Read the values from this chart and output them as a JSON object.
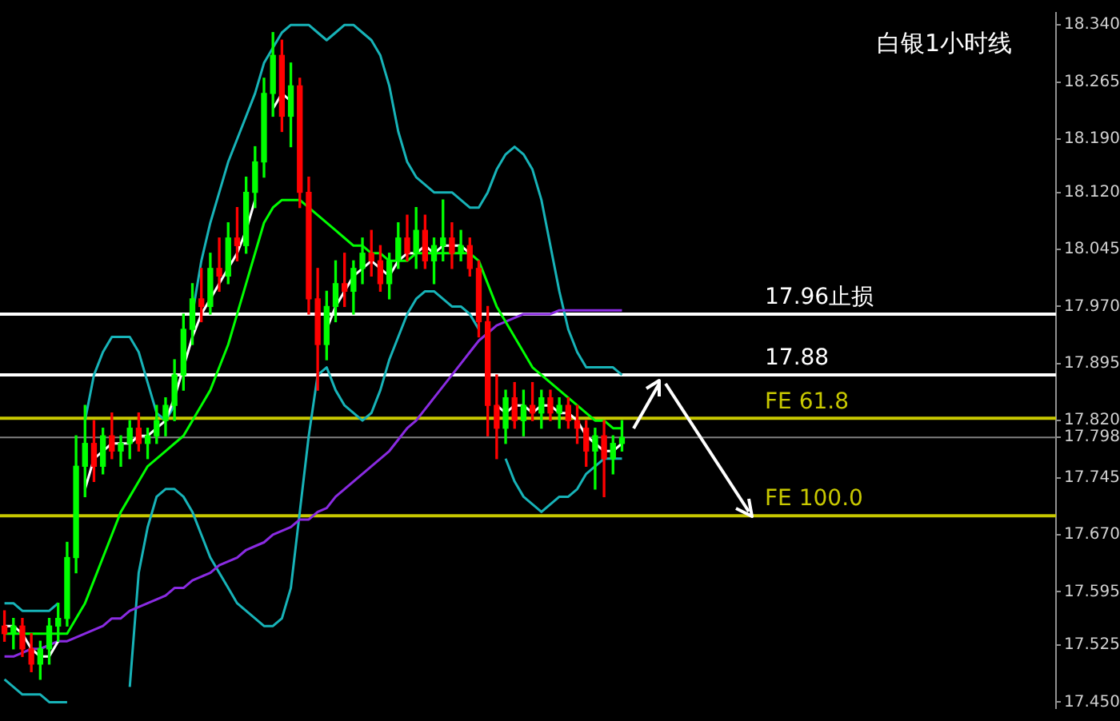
{
  "chart_data": {
    "type": "candlestick",
    "title": "白银1小时线",
    "categories": [
      null,
      null,
      null,
      null,
      null,
      null,
      null,
      null,
      null,
      null,
      null,
      null,
      null,
      null,
      null,
      null,
      null,
      null,
      null,
      null,
      null,
      null,
      null,
      null,
      null,
      null,
      null,
      null,
      null,
      null,
      null,
      null,
      null,
      null,
      null,
      null,
      null,
      null,
      null,
      null,
      null,
      null,
      null,
      null,
      null,
      null,
      null,
      null,
      null,
      null,
      null,
      null,
      null,
      null,
      null,
      null,
      null,
      null,
      null,
      null,
      null,
      null,
      null,
      null,
      null,
      null,
      null,
      null,
      null,
      null,
      null,
      null,
      null,
      null,
      null,
      null,
      null,
      null,
      null,
      null,
      null,
      null,
      null,
      null,
      null,
      null,
      null,
      null,
      null,
      null,
      null,
      null,
      null,
      null,
      null,
      null,
      null,
      null,
      null,
      null,
      null,
      null,
      null,
      null,
      null,
      null,
      null,
      null,
      null,
      null,
      null,
      null,
      null,
      null,
      null,
      null,
      null,
      null
    ],
    "ohlc": [
      [
        17.55,
        17.57,
        17.53,
        17.54
      ],
      [
        17.54,
        17.56,
        17.52,
        17.55
      ],
      [
        17.55,
        17.56,
        17.51,
        17.52
      ],
      [
        17.52,
        17.54,
        17.49,
        17.5
      ],
      [
        17.5,
        17.53,
        17.48,
        17.52
      ],
      [
        17.52,
        17.56,
        17.5,
        17.55
      ],
      [
        17.55,
        17.58,
        17.53,
        17.56
      ],
      [
        17.56,
        17.66,
        17.55,
        17.64
      ],
      [
        17.64,
        17.8,
        17.62,
        17.76
      ],
      [
        17.76,
        17.84,
        17.72,
        17.79
      ],
      [
        17.79,
        17.82,
        17.74,
        17.76
      ],
      [
        17.76,
        17.81,
        17.75,
        17.8
      ],
      [
        17.8,
        17.83,
        17.77,
        17.78
      ],
      [
        17.78,
        17.8,
        17.76,
        17.79
      ],
      [
        17.79,
        17.82,
        17.77,
        17.81
      ],
      [
        17.81,
        17.83,
        17.78,
        17.79
      ],
      [
        17.79,
        17.81,
        17.77,
        17.8
      ],
      [
        17.8,
        17.84,
        17.79,
        17.82
      ],
      [
        17.82,
        17.85,
        17.8,
        17.84
      ],
      [
        17.84,
        17.9,
        17.82,
        17.88
      ],
      [
        17.88,
        17.96,
        17.86,
        17.94
      ],
      [
        17.94,
        18.0,
        17.92,
        17.98
      ],
      [
        17.98,
        18.02,
        17.95,
        17.97
      ],
      [
        17.97,
        18.04,
        17.96,
        18.02
      ],
      [
        18.02,
        18.06,
        17.99,
        18.01
      ],
      [
        18.01,
        18.08,
        18.0,
        18.06
      ],
      [
        18.06,
        18.1,
        18.03,
        18.05
      ],
      [
        18.05,
        18.14,
        18.04,
        18.12
      ],
      [
        18.12,
        18.18,
        18.1,
        18.16
      ],
      [
        18.16,
        18.27,
        18.14,
        18.25
      ],
      [
        18.25,
        18.33,
        18.22,
        18.3
      ],
      [
        18.3,
        18.32,
        18.2,
        18.22
      ],
      [
        18.22,
        18.29,
        18.18,
        18.26
      ],
      [
        18.26,
        18.27,
        18.1,
        18.12
      ],
      [
        18.12,
        18.14,
        17.96,
        17.98
      ],
      [
        17.98,
        18.02,
        17.86,
        17.92
      ],
      [
        17.92,
        17.99,
        17.9,
        17.97
      ],
      [
        17.97,
        18.03,
        17.95,
        18.0
      ],
      [
        18.0,
        18.04,
        17.97,
        17.99
      ],
      [
        17.99,
        18.03,
        17.96,
        18.02
      ],
      [
        18.02,
        18.06,
        18.0,
        18.04
      ],
      [
        18.04,
        18.07,
        18.01,
        18.03
      ],
      [
        18.03,
        18.05,
        17.99,
        18.0
      ],
      [
        18.0,
        18.04,
        17.98,
        18.03
      ],
      [
        18.03,
        18.08,
        18.02,
        18.06
      ],
      [
        18.06,
        18.09,
        18.03,
        18.04
      ],
      [
        18.04,
        18.1,
        18.02,
        18.07
      ],
      [
        18.07,
        18.09,
        18.02,
        18.03
      ],
      [
        18.03,
        18.06,
        18.0,
        18.05
      ],
      [
        18.05,
        18.11,
        18.03,
        18.06
      ],
      [
        18.06,
        18.08,
        18.02,
        18.04
      ],
      [
        18.04,
        18.07,
        18.03,
        18.05
      ],
      [
        18.05,
        18.06,
        18.01,
        18.02
      ],
      [
        18.02,
        18.03,
        17.93,
        17.95
      ],
      [
        17.95,
        17.97,
        17.8,
        17.84
      ],
      [
        17.84,
        17.88,
        17.77,
        17.81
      ],
      [
        17.81,
        17.86,
        17.79,
        17.85
      ],
      [
        17.85,
        17.87,
        17.81,
        17.82
      ],
      [
        17.82,
        17.86,
        17.8,
        17.84
      ],
      [
        17.84,
        17.87,
        17.82,
        17.83
      ],
      [
        17.83,
        17.86,
        17.81,
        17.85
      ],
      [
        17.85,
        17.86,
        17.82,
        17.83
      ],
      [
        17.83,
        17.85,
        17.81,
        17.84
      ],
      [
        17.84,
        17.85,
        17.81,
        17.82
      ],
      [
        17.82,
        17.84,
        17.79,
        17.81
      ],
      [
        17.81,
        17.82,
        17.76,
        17.78
      ],
      [
        17.78,
        17.81,
        17.73,
        17.8
      ],
      [
        17.8,
        17.82,
        17.72,
        17.77
      ],
      [
        17.77,
        17.8,
        17.75,
        17.79
      ],
      [
        17.79,
        17.82,
        17.78,
        17.798
      ],
      null,
      null,
      null,
      null,
      null,
      null,
      null,
      null,
      null,
      null,
      null,
      null,
      null,
      null,
      null,
      null,
      null,
      null,
      null,
      null,
      null,
      null,
      null,
      null,
      null,
      null,
      null,
      null,
      null,
      null,
      null,
      null,
      null,
      null,
      null,
      null,
      null,
      null,
      null,
      null,
      null,
      null,
      null,
      null,
      null,
      null,
      null,
      null
    ],
    "colors": [
      "#ff0000",
      "#00ff00",
      "#ff0000",
      "#ff0000",
      "#00ff00",
      "#00ff00",
      "#00ff00",
      "#00ff00",
      "#00ff00",
      "#00ff00",
      "#ff0000",
      "#00ff00",
      "#ff0000",
      "#00ff00",
      "#00ff00",
      "#ff0000",
      "#00ff00",
      "#00ff00",
      "#00ff00",
      "#00ff00",
      "#00ff00",
      "#00ff00",
      "#ff0000",
      "#00ff00",
      "#ff0000",
      "#00ff00",
      "#ff0000",
      "#00ff00",
      "#00ff00",
      "#00ff00",
      "#00ff00",
      "#ff0000",
      "#00ff00",
      "#ff0000",
      "#ff0000",
      "#ff0000",
      "#00ff00",
      "#00ff00",
      "#ff0000",
      "#00ff00",
      "#00ff00",
      "#ff0000",
      "#ff0000",
      "#00ff00",
      "#00ff00",
      "#ff0000",
      "#00ff00",
      "#ff0000",
      "#00ff00",
      "#00ff00",
      "#ff0000",
      "#00ff00",
      "#ff0000",
      "#ff0000",
      "#ff0000",
      "#ff0000",
      "#00ff00",
      "#ff0000",
      "#00ff00",
      "#ff0000",
      "#00ff00",
      "#ff0000",
      "#00ff00",
      "#ff0000",
      "#ff0000",
      "#ff0000",
      "#00ff00",
      "#ff0000",
      "#00ff00",
      "#00ff00",
      null,
      null,
      null,
      null,
      null,
      null,
      null,
      null,
      null,
      null,
      null,
      null,
      null,
      null,
      null,
      null,
      null,
      null,
      null,
      null,
      null,
      null,
      null,
      null,
      null,
      null,
      null,
      null,
      null,
      null,
      null,
      null,
      null,
      null,
      null,
      null,
      null,
      null,
      null,
      null,
      null,
      null,
      null,
      null,
      null,
      null,
      null,
      null
    ],
    "series": [
      {
        "type": "line",
        "color": "#ffffff",
        "values": [
          17.55,
          17.55,
          17.54,
          17.52,
          17.51,
          17.51,
          17.53,
          null,
          null,
          17.73,
          17.77,
          17.78,
          17.79,
          17.79,
          17.79,
          17.8,
          17.8,
          17.81,
          17.82,
          17.85,
          17.89,
          17.93,
          17.96,
          17.98,
          18.0,
          18.02,
          18.04,
          18.07,
          18.11,
          null,
          18.23,
          18.25,
          18.24,
          null,
          null,
          null,
          17.94,
          17.97,
          17.99,
          18.01,
          18.02,
          18.03,
          18.02,
          18.01,
          18.03,
          18.04,
          18.04,
          18.05,
          18.04,
          18.05,
          18.05,
          18.05,
          18.04,
          null,
          null,
          17.84,
          17.83,
          17.84,
          17.84,
          17.83,
          17.84,
          17.84,
          17.83,
          17.83,
          17.82,
          17.8,
          17.79,
          17.78,
          17.78,
          17.79,
          null,
          null,
          null,
          null,
          null,
          null,
          null,
          null,
          null,
          null,
          null,
          null,
          null,
          null,
          null,
          null,
          null,
          null,
          null,
          null,
          null,
          null,
          null,
          null,
          null,
          null,
          null,
          null,
          null,
          null,
          null,
          null,
          null,
          null,
          null,
          null,
          null,
          null,
          null,
          null,
          null,
          null,
          null,
          null,
          null,
          null,
          null,
          null
        ]
      },
      {
        "type": "line",
        "color": "#00ff00",
        "values": [
          17.54,
          17.54,
          17.54,
          17.54,
          17.54,
          17.54,
          17.54,
          17.54,
          17.56,
          17.58,
          17.61,
          17.64,
          17.67,
          17.7,
          17.72,
          17.74,
          17.76,
          17.77,
          17.78,
          17.79,
          17.8,
          17.82,
          17.84,
          17.86,
          17.89,
          17.92,
          17.96,
          18.0,
          18.04,
          18.08,
          18.1,
          18.11,
          18.11,
          18.11,
          18.1,
          18.09,
          18.08,
          18.07,
          18.06,
          18.05,
          18.05,
          18.04,
          18.04,
          18.03,
          18.03,
          18.03,
          18.04,
          18.04,
          18.04,
          18.04,
          18.04,
          18.04,
          18.04,
          18.03,
          18.0,
          17.97,
          17.95,
          17.93,
          17.91,
          17.89,
          17.88,
          17.87,
          17.86,
          17.85,
          17.84,
          17.83,
          17.82,
          17.82,
          17.81,
          17.81,
          null,
          null,
          null,
          null,
          null,
          null,
          null,
          null,
          null,
          null,
          null,
          null,
          null,
          null,
          null,
          null,
          null,
          null,
          null,
          null,
          null,
          null,
          null,
          null,
          null,
          null,
          null,
          null,
          null,
          null,
          null,
          null,
          null,
          null,
          null,
          null,
          null,
          null,
          null,
          null,
          null,
          null,
          null,
          null,
          null,
          null,
          null,
          null
        ]
      },
      {
        "type": "line",
        "color": "#8a2be2",
        "values": [
          17.51,
          17.51,
          17.515,
          17.52,
          17.52,
          17.525,
          17.53,
          17.53,
          17.535,
          17.54,
          17.545,
          17.55,
          17.56,
          17.56,
          17.57,
          17.575,
          17.58,
          17.585,
          17.59,
          17.6,
          17.6,
          17.61,
          17.615,
          17.62,
          17.63,
          17.635,
          17.64,
          17.65,
          17.655,
          17.66,
          17.67,
          17.675,
          17.68,
          17.69,
          17.69,
          17.7,
          17.705,
          17.72,
          17.73,
          17.74,
          17.75,
          17.76,
          17.77,
          17.78,
          17.795,
          17.81,
          17.82,
          17.835,
          17.85,
          17.865,
          17.88,
          17.895,
          17.91,
          17.925,
          17.935,
          17.945,
          17.95,
          17.955,
          17.96,
          17.96,
          17.96,
          17.96,
          17.965,
          17.965,
          17.965,
          17.965,
          17.965,
          17.965,
          17.965,
          17.965,
          null,
          null,
          null,
          null,
          null,
          null,
          null,
          null,
          null,
          null,
          null,
          null,
          null,
          null,
          null,
          null,
          null,
          null,
          null,
          null,
          null,
          null,
          null,
          null,
          null,
          null,
          null,
          null,
          null,
          null,
          null,
          null,
          null,
          null,
          null,
          null,
          null,
          null,
          null,
          null,
          null,
          null,
          null,
          null,
          null,
          null,
          null,
          null
        ]
      },
      {
        "type": "line",
        "color": "#17b3b8",
        "values": [
          17.58,
          17.58,
          17.57,
          17.57,
          17.57,
          17.57,
          17.58,
          null,
          null,
          17.82,
          17.88,
          17.91,
          17.93,
          17.93,
          17.93,
          17.91,
          17.87,
          17.83,
          17.82,
          17.84,
          null,
          17.96,
          18.03,
          18.08,
          18.12,
          18.16,
          18.19,
          18.22,
          18.25,
          18.29,
          18.31,
          18.33,
          18.34,
          18.34,
          18.34,
          18.33,
          18.32,
          18.33,
          18.34,
          18.34,
          18.33,
          18.32,
          18.3,
          18.26,
          18.2,
          18.16,
          18.14,
          18.13,
          18.12,
          18.12,
          18.12,
          18.11,
          18.1,
          18.1,
          18.12,
          18.15,
          18.17,
          18.18,
          18.17,
          18.15,
          18.11,
          18.05,
          17.99,
          17.94,
          17.91,
          17.89,
          17.89,
          17.89,
          17.89,
          17.88,
          null,
          null,
          null,
          null,
          null,
          null,
          null,
          null,
          null,
          null,
          null,
          null,
          null,
          null,
          null,
          null,
          null,
          null,
          null,
          null,
          null,
          null,
          null,
          null,
          null,
          null,
          null,
          null,
          null,
          null,
          null,
          null,
          null,
          null,
          null,
          null,
          null,
          null,
          null,
          null,
          null,
          null,
          null,
          null,
          null,
          null,
          null,
          null
        ]
      },
      {
        "type": "line",
        "color": "#17b3b8",
        "values": [
          17.48,
          17.47,
          17.46,
          17.46,
          17.46,
          17.45,
          17.45,
          17.45,
          null,
          null,
          null,
          null,
          null,
          null,
          17.47,
          17.62,
          17.68,
          17.72,
          17.73,
          17.73,
          17.72,
          17.7,
          17.67,
          17.64,
          17.62,
          17.6,
          17.58,
          17.57,
          17.56,
          17.55,
          17.55,
          17.56,
          17.6,
          17.7,
          17.8,
          17.88,
          17.89,
          17.86,
          17.84,
          17.83,
          17.82,
          17.83,
          17.86,
          17.9,
          17.93,
          17.96,
          17.98,
          17.99,
          17.99,
          17.98,
          17.97,
          17.97,
          17.96,
          17.94,
          null,
          null,
          17.77,
          17.74,
          17.72,
          17.71,
          17.7,
          17.71,
          17.72,
          17.72,
          17.73,
          17.75,
          17.76,
          17.77,
          17.77,
          17.77,
          null,
          null,
          null,
          null,
          null,
          null,
          null,
          null,
          null,
          null,
          null,
          null,
          null,
          null,
          null,
          null,
          null,
          null,
          null,
          null,
          null,
          null,
          null,
          null,
          null,
          null,
          null,
          null,
          null,
          null,
          null,
          null,
          null,
          null,
          null,
          null,
          null,
          null,
          null,
          null,
          null,
          null,
          null,
          null,
          null,
          null,
          null,
          null
        ]
      }
    ],
    "ylim": [
      17.442,
      18.356
    ],
    "yticks": [
      {
        "value": 17.45,
        "label": "17.450"
      },
      {
        "value": 17.525,
        "label": "17.525"
      },
      {
        "value": 17.595,
        "label": "17.595"
      },
      {
        "value": 17.67,
        "label": "17.670"
      },
      {
        "value": 17.745,
        "label": "17.745"
      },
      {
        "value": 17.798,
        "label": "17.798"
      },
      {
        "value": 17.82,
        "label": "17.820"
      },
      {
        "value": 17.895,
        "label": "17.895"
      },
      {
        "value": 17.97,
        "label": "17.970"
      },
      {
        "value": 18.045,
        "label": "18.045"
      },
      {
        "value": 18.12,
        "label": "18.120"
      },
      {
        "value": 18.19,
        "label": "18.190"
      },
      {
        "value": 18.265,
        "label": "18.265"
      },
      {
        "value": 18.34,
        "label": "18.340"
      }
    ],
    "ref_lines": [
      {
        "axis": "y",
        "value": 17.798,
        "color": "#808080"
      },
      {
        "axis": "y",
        "value": 17.823,
        "label": "FE 61.8",
        "color": "#c8c800"
      },
      {
        "axis": "y",
        "value": 17.695,
        "label": "FE 100.0",
        "color": "#c8c800"
      },
      {
        "axis": "y",
        "value": 17.96,
        "label": "17.96止损",
        "color": "#ffffff"
      },
      {
        "axis": "y",
        "value": 17.88,
        "label": "17.88",
        "color": "#ffffff"
      }
    ],
    "tick_labels": "y",
    "grid": false,
    "legend": false,
    "marker": "none",
    "line_style": "solid"
  }
}
